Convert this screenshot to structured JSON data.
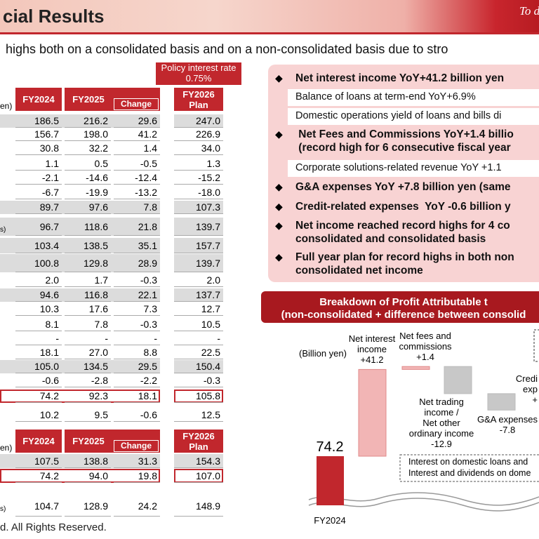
{
  "header": {
    "title": "cial Results",
    "tag": "To d"
  },
  "subtitle": "highs both on a consolidated basis and on a non-consolidated basis due to stro",
  "policy_rate": {
    "label": "Policy interest rate",
    "value": "0.75%"
  },
  "table1": {
    "unit_label": "en)",
    "columns": [
      "FY2024",
      "FY2025",
      "Change",
      "FY2026\nPlan"
    ],
    "row_notes": [
      {
        "row": 7,
        "text": "s)"
      }
    ],
    "rows": [
      [
        "186.5",
        "216.2",
        "29.6",
        "247.0"
      ],
      [
        "156.7",
        "198.0",
        "41.2",
        "226.9"
      ],
      [
        "30.8",
        "32.2",
        "1.4",
        "34.0"
      ],
      [
        "1.1",
        "0.5",
        "-0.5",
        "1.3"
      ],
      [
        "-2.1",
        "-14.6",
        "-12.4",
        "-15.2"
      ],
      [
        "-6.7",
        "-19.9",
        "-13.2",
        "-18.0"
      ],
      [
        "89.7",
        "97.6",
        "7.8",
        "107.3"
      ],
      [
        "96.7",
        "118.6",
        "21.8",
        "139.7"
      ],
      [
        "103.4",
        "138.5",
        "35.1",
        "157.7"
      ],
      [
        "100.8",
        "129.8",
        "28.9",
        "139.7"
      ],
      [
        "2.0",
        "1.7",
        "-0.3",
        "2.0"
      ],
      [
        "94.6",
        "116.8",
        "22.1",
        "137.7"
      ],
      [
        "10.3",
        "17.6",
        "7.3",
        "12.7"
      ],
      [
        "8.1",
        "7.8",
        "-0.3",
        "10.5"
      ],
      [
        "-",
        "-",
        "-",
        "-"
      ],
      [
        "18.1",
        "27.0",
        "8.8",
        "22.5"
      ],
      [
        "105.0",
        "134.5",
        "29.5",
        "150.4"
      ],
      [
        "-0.6",
        "-2.8",
        "-2.2",
        "-0.3"
      ],
      [
        "74.2",
        "92.3",
        "18.1",
        "105.8"
      ],
      [
        "10.2",
        "9.5",
        "-0.6",
        "12.5"
      ]
    ]
  },
  "table2": {
    "unit_label": "en)",
    "columns": [
      "FY2024",
      "FY2025",
      "Change",
      "FY2026\nPlan"
    ],
    "row_notes": [
      {
        "row": 2,
        "text": "s)"
      }
    ],
    "rows": [
      [
        "107.5",
        "138.8",
        "31.3",
        "154.3"
      ],
      [
        "74.2",
        "94.0",
        "19.8",
        "107.0"
      ],
      [
        "104.7",
        "128.9",
        "24.2",
        "148.9"
      ]
    ]
  },
  "footer": "d. All Rights Reserved.",
  "highlights": [
    {
      "bold": true,
      "lines": [
        "Net interest income YoY+41.2 billion yen"
      ]
    },
    {
      "bold": false,
      "lines": [
        "Balance of loans at term-end YoY+6.9%"
      ]
    },
    {
      "bold": false,
      "lines": [
        "Domestic operations yield of loans and bills di"
      ]
    },
    {
      "bold": true,
      "lines": [
        " Net Fees and Commissions YoY+1.4 billio",
        " (record high for 6 consecutive fiscal year"
      ]
    },
    {
      "bold": false,
      "lines": [
        "Corporate solutions-related revenue YoY +1.1"
      ]
    },
    {
      "bold": true,
      "lines": [
        "G&A expenses YoY +7.8 billion yen (same"
      ]
    },
    {
      "bold": true,
      "lines": [
        "Credit-related expenses  YoY -0.6 billion y"
      ]
    },
    {
      "bold": true,
      "lines": [
        "Net income reached record highs for 4 co",
        "consolidated and consolidated basis"
      ]
    },
    {
      "bold": true,
      "lines": [
        "Full year plan for record highs in both non",
        "consolidated net income"
      ]
    }
  ],
  "breakdown": {
    "title_lines": [
      "Breakdown of Profit Attributable t",
      "(non-consolidated + difference between consolid"
    ],
    "unit": "(Billion yen)",
    "base_category": "FY2024",
    "base_value": 74.2,
    "base_label": "74.2",
    "steps": [
      {
        "label_lines": [
          "Net interest",
          "income",
          "+41.2"
        ],
        "value": 41.2
      },
      {
        "label_lines": [
          "Net fees and",
          "commissions",
          "+1.4"
        ],
        "value": 1.4
      },
      {
        "label_lines": [
          "Net trading",
          "income /",
          "Net other",
          "ordinary income",
          "-12.9"
        ],
        "value": -12.9
      },
      {
        "label_lines": [
          "G&A expenses",
          "-7.8"
        ],
        "value": -7.8
      }
    ],
    "partial_label_lines": [
      "Credi",
      "exp",
      "+"
    ],
    "note_lines": [
      "Interest on domestic loans and",
      "Interest and dividends on dome"
    ]
  }
}
